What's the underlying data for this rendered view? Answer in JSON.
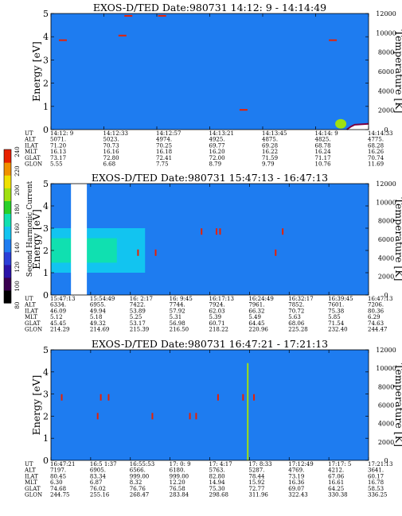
{
  "colorbar": {
    "label": "Second Harmonic Current",
    "ticks": [
      "80",
      "100",
      "120",
      "140",
      "160",
      "180",
      "200",
      "220",
      "240"
    ],
    "colors": [
      "#000000",
      "#3a0050",
      "#2a12a8",
      "#2a3ed8",
      "#1e7cf0",
      "#12c4f0",
      "#10e0b0",
      "#28d028",
      "#a0e010",
      "#f0e000",
      "#f09000",
      "#e82000"
    ]
  },
  "panels": [
    {
      "title": "EXOS-D/TED   Date:980731  14:12: 9 - 14:14:49",
      "ylabel": "Energy [eV]",
      "y2label": "Temperature [K]",
      "yticks": [
        "0",
        "1",
        "2",
        "3",
        "4",
        "5"
      ],
      "y2ticks": [
        "0",
        "2000",
        "4000",
        "6000",
        "8000",
        "10000",
        "12000"
      ],
      "eph_labels": [
        "UT",
        "ALT",
        "ILAT",
        "MLT",
        "GLAT",
        "GLON"
      ],
      "eph_cols": [
        [
          "14:12: 9",
          "5071.",
          "71.20",
          "16.13",
          "73.17",
          "5.55"
        ],
        [
          "14:12:33",
          "5023.",
          "70.73",
          "16.16",
          "72.80",
          "6.68"
        ],
        [
          "14:12:57",
          "4974.",
          "70.25",
          "16.18",
          "72.41",
          "7.75"
        ],
        [
          "14:13:21",
          "4925.",
          "69.77",
          "16.20",
          "72.00",
          "8.79"
        ],
        [
          "14:13:45",
          "4875.",
          "69.28",
          "16.22",
          "71.59",
          "9.79"
        ],
        [
          "14:14: 9",
          "4825.",
          "68.78",
          "16.24",
          "71.17",
          "10.76"
        ],
        [
          "14:14:33",
          "4775.",
          "68.28",
          "16.26",
          "70.74",
          "11.69"
        ]
      ]
    },
    {
      "title": "EXOS-D/TED   Date:980731  15:47:13 - 16:47:13",
      "ylabel": "Energy [eV]",
      "y2label": "Temperature [K]",
      "yticks": [
        "0",
        "1",
        "2",
        "3",
        "4",
        "5"
      ],
      "y2ticks": [
        "0",
        "2000",
        "4000",
        "6000",
        "8000",
        "10000",
        "12000"
      ],
      "eph_labels": [
        "UT",
        "ALT",
        "ILAT",
        "MLT",
        "GLAT",
        "GLON"
      ],
      "eph_cols": [
        [
          "15:47:13",
          "6334.",
          "46.09",
          "5.12",
          "45.45",
          "214.29"
        ],
        [
          "15:54:49",
          "6955.",
          "49.94",
          "5.18",
          "49.32",
          "214.69"
        ],
        [
          "16: 2:17",
          "7422.",
          "53.89",
          "5.25",
          "53.17",
          "215.39"
        ],
        [
          "16: 9:45",
          "7744.",
          "57.92",
          "5.31",
          "56.98",
          "216.50"
        ],
        [
          "16:17:13",
          "7924.",
          "62.03",
          "5.39",
          "60.71",
          "218.22"
        ],
        [
          "16:24:49",
          "7961.",
          "66.32",
          "5.49",
          "64.45",
          "220.96"
        ],
        [
          "16:32:17",
          "7852.",
          "70.72",
          "5.63",
          "68.06",
          "225.28"
        ],
        [
          "16:39:45",
          "7601.",
          "75.38",
          "5.85",
          "71.54",
          "232.40"
        ],
        [
          "16:47:13",
          "7206.",
          "80.36",
          "6.29",
          "74.63",
          "244.47"
        ]
      ]
    },
    {
      "title": "EXOS-D/TED   Date:980731  16:47:21 - 17:21:13",
      "ylabel": "Energy [eV]",
      "y2label": "Temperature [K]",
      "yticks": [
        "0",
        "1",
        "2",
        "3",
        "4",
        "5"
      ],
      "y2ticks": [
        "0",
        "2000",
        "4000",
        "6000",
        "8000",
        "10000",
        "12000"
      ],
      "eph_labels": [
        "UT",
        "ALT",
        "ILAT",
        "MLT",
        "GLAT",
        "GLON"
      ],
      "eph_cols": [
        [
          "16:47:21",
          "7197.",
          "80.45",
          "6.30",
          "74.68",
          "244.75"
        ],
        [
          "16:5 1:37",
          "6905.",
          "83.34",
          "6.87",
          "76.02",
          "255.16"
        ],
        [
          "16:55:53",
          "6566.",
          "999.00",
          "8.32",
          "76.76",
          "268.47"
        ],
        [
          "17: 0: 9",
          "6180.",
          "999.00",
          "12.20",
          "76.58",
          "283.84"
        ],
        [
          "17: 4:17",
          "5763.",
          "82.80",
          "14.94",
          "75.30",
          "298.68"
        ],
        [
          "17: 8:33",
          "5287.",
          "78.44",
          "15.92",
          "72.77",
          "311.96"
        ],
        [
          "17:12:49",
          "4769.",
          "73.19",
          "16.36",
          "69.07",
          "322.43"
        ],
        [
          "17:17: 5",
          "4212.",
          "67.06",
          "16.61",
          "64.25",
          "330.38"
        ],
        [
          "17:21:13",
          "3641.",
          "60.17",
          "16.78",
          "58.53",
          "336.25"
        ]
      ]
    }
  ],
  "chart_data": [
    {
      "type": "heatmap",
      "title": "EXOS-D/TED   Date:980731  14:12: 9 - 14:14:49",
      "xlabel": "UT",
      "ylabel": "Energy [eV]",
      "y2label": "Temperature [K]",
      "xlim": [
        "14:12: 9",
        "14:14:49"
      ],
      "ylim": [
        0,
        5
      ],
      "y2lim": [
        0,
        12000
      ],
      "background_level": 140,
      "features": [
        {
          "kind": "dash",
          "x": "14:12:15",
          "y": 3.85,
          "level": 240
        },
        {
          "kind": "dash",
          "x": "14:12:45",
          "y": 4.05,
          "level": 240
        },
        {
          "kind": "dash",
          "x": "14:12:48",
          "y": 4.9,
          "level": 240
        },
        {
          "kind": "dash",
          "x": "14:13:05",
          "y": 4.9,
          "level": 240
        },
        {
          "kind": "dash",
          "x": "14:13:46",
          "y": 0.85,
          "level": 240
        },
        {
          "kind": "dash",
          "x": "14:14:31",
          "y": 3.85,
          "level": 240
        },
        {
          "kind": "blob",
          "x": "14:14:35",
          "y": 0.25,
          "level": 200
        }
      ],
      "temperature_curve": {
        "x": [
          "14:14:38",
          "14:14:40",
          "14:14:42",
          "14:14:49"
        ],
        "y": [
          0,
          300,
          500,
          600
        ]
      }
    },
    {
      "type": "heatmap",
      "title": "EXOS-D/TED   Date:980731  15:47:13 - 16:47:13",
      "xlabel": "UT",
      "ylabel": "Energy [eV]",
      "y2label": "Temperature [K]",
      "xlim": [
        "15:47:13",
        "16:47:13"
      ],
      "ylim": [
        0,
        5
      ],
      "y2lim": [
        0,
        12000
      ],
      "background_level": 140,
      "band": {
        "x_start": "15:47:13",
        "x_end": "16: 5:00",
        "y_center": 2.0,
        "y_halfwidth": 1.0,
        "level": 170
      },
      "gap": {
        "x_start": "15:51:00",
        "x_end": "15:54:00"
      },
      "features": [
        {
          "kind": "dot",
          "x": "16: 3:40",
          "y": 1.9,
          "level": 240
        },
        {
          "kind": "dot",
          "x": "16: 7:00",
          "y": 1.9,
          "level": 240
        },
        {
          "kind": "dot",
          "x": "16:15:40",
          "y": 2.85,
          "level": 240
        },
        {
          "kind": "dot",
          "x": "16:18:30",
          "y": 2.85,
          "level": 240
        },
        {
          "kind": "dot",
          "x": "16:19:10",
          "y": 2.85,
          "level": 240
        },
        {
          "kind": "dot",
          "x": "16:29:40",
          "y": 1.9,
          "level": 240
        },
        {
          "kind": "dot",
          "x": "16:31:00",
          "y": 2.85,
          "level": 240
        }
      ]
    },
    {
      "type": "heatmap",
      "title": "EXOS-D/TED   Date:980731  16:47:21 - 17:21:13",
      "xlabel": "UT",
      "ylabel": "Energy [eV]",
      "y2label": "Temperature [K]",
      "xlim": [
        "16:47:21",
        "17:21:13"
      ],
      "ylim": [
        0,
        5
      ],
      "y2lim": [
        0,
        12000
      ],
      "background_level": 140,
      "features": [
        {
          "kind": "dot",
          "x": "16:48:30",
          "y": 2.85,
          "level": 240
        },
        {
          "kind": "dot",
          "x": "16:52:20",
          "y": 2.0,
          "level": 240
        },
        {
          "kind": "dot",
          "x": "16:52:40",
          "y": 2.85,
          "level": 240
        },
        {
          "kind": "dot",
          "x": "16:53:30",
          "y": 2.85,
          "level": 240
        },
        {
          "kind": "dot",
          "x": "16:58:10",
          "y": 2.0,
          "level": 240
        },
        {
          "kind": "dot",
          "x": "17: 2:10",
          "y": 2.0,
          "level": 240
        },
        {
          "kind": "dot",
          "x": "17: 2:50",
          "y": 2.0,
          "level": 240
        },
        {
          "kind": "dot",
          "x": "17: 5:10",
          "y": 2.85,
          "level": 240
        },
        {
          "kind": "dot",
          "x": "17: 7:50",
          "y": 2.85,
          "level": 240
        },
        {
          "kind": "dot",
          "x": "17: 9:00",
          "y": 2.85,
          "level": 240
        },
        {
          "kind": "streak",
          "x": "17: 8:20",
          "y_range": [
            0,
            4.4
          ],
          "level": 200
        }
      ]
    }
  ]
}
